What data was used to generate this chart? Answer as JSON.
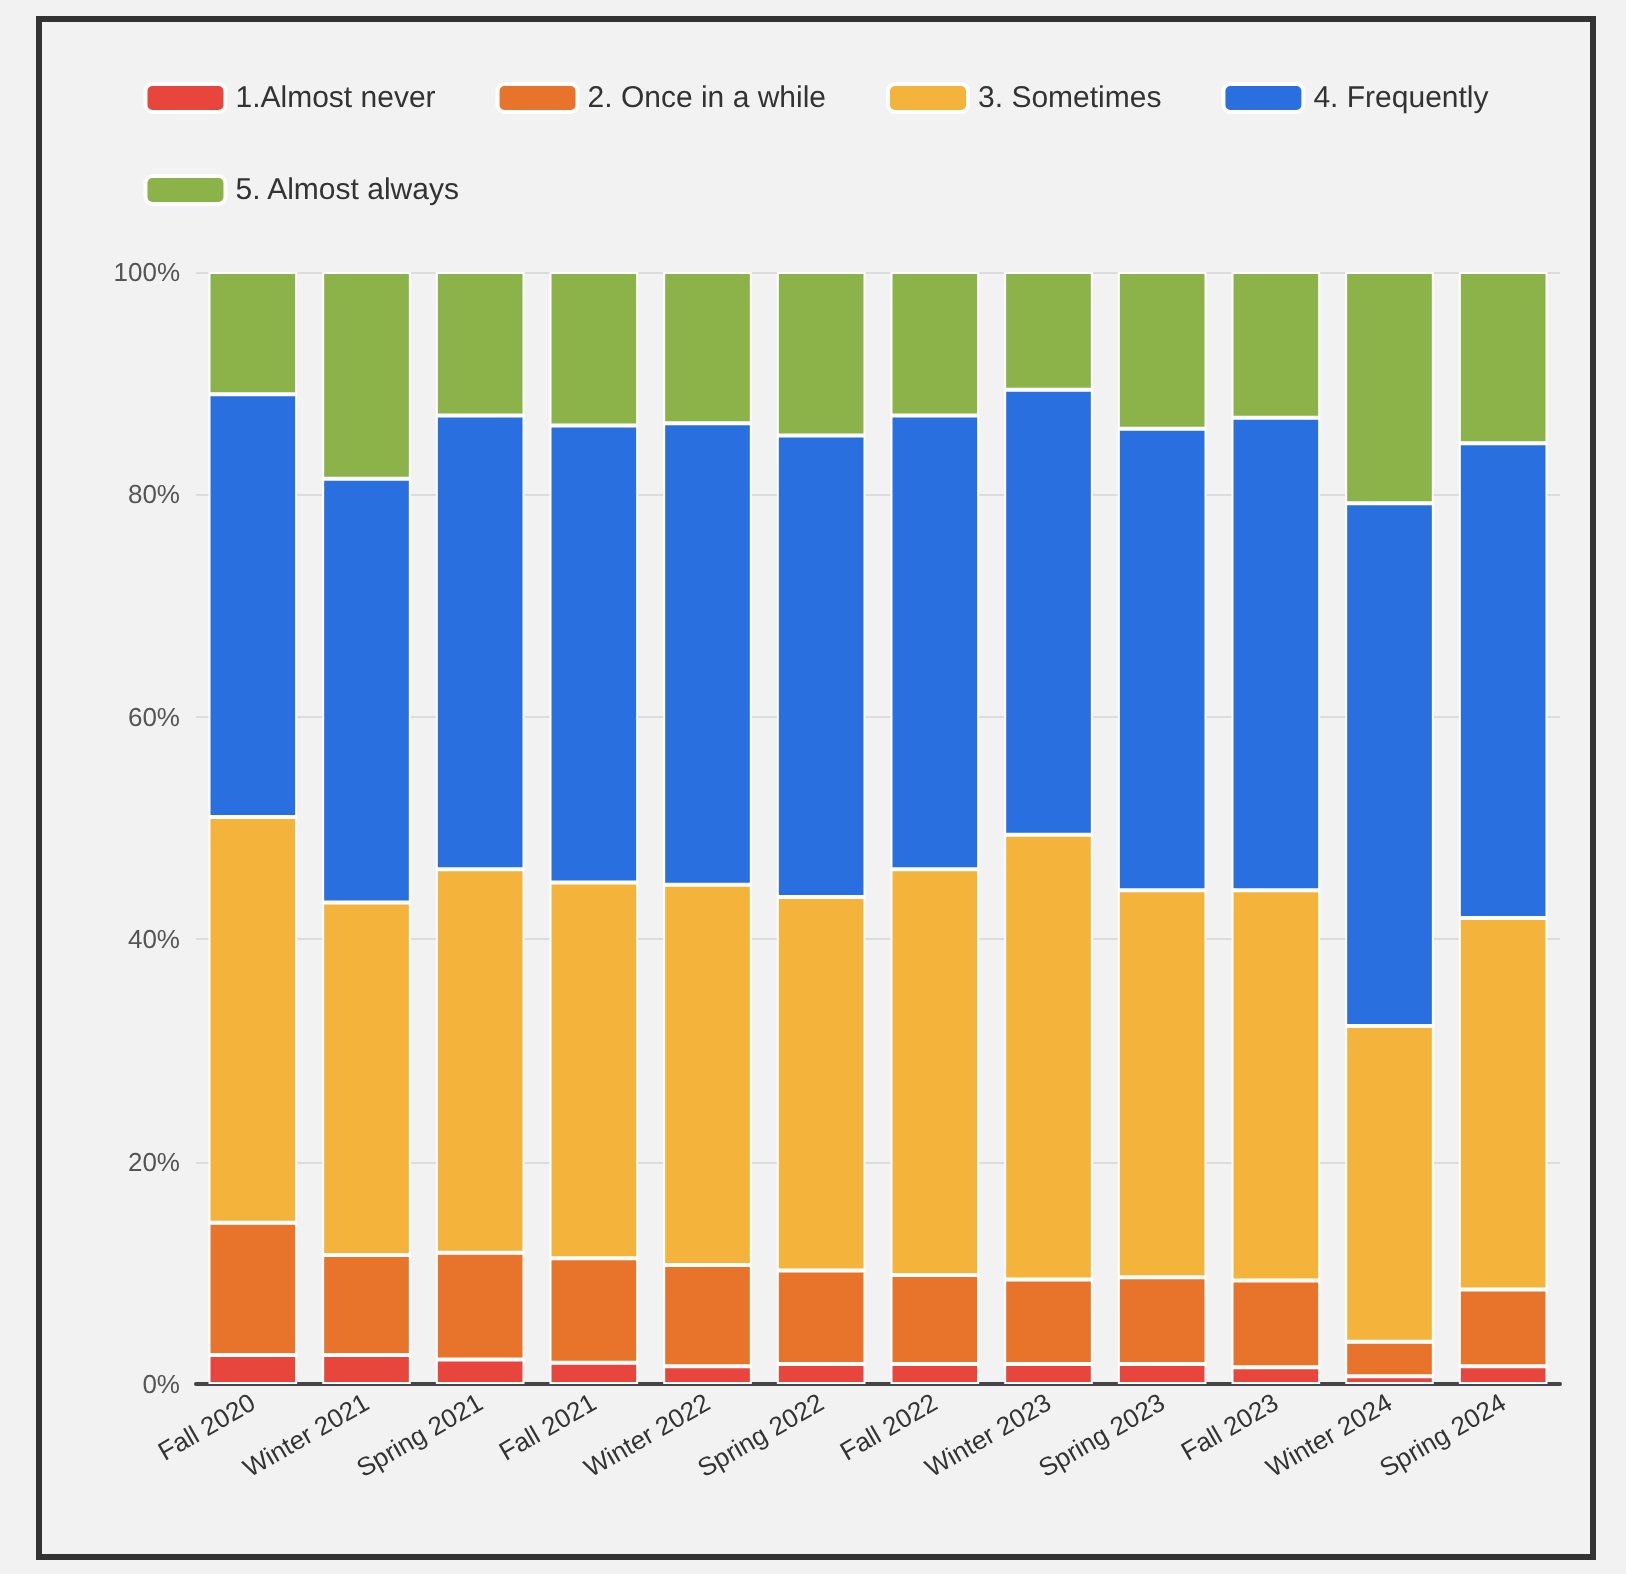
{
  "chart_data": {
    "type": "bar",
    "stacked": true,
    "categories": [
      "Fall 2020",
      "Winter 2021",
      "Spring 2021",
      "Fall 2021",
      "Winter 2022",
      "Spring 2022",
      "Fall 2022",
      "Winter 2023",
      "Spring 2023",
      "Fall 2023",
      "Winter 2024",
      "Spring 2024"
    ],
    "series": [
      {
        "name": "1.Almost never",
        "color": "#e8453c",
        "values": [
          2.6,
          2.6,
          2.2,
          1.9,
          1.6,
          1.8,
          1.8,
          1.8,
          1.8,
          1.5,
          0.7,
          1.6
        ]
      },
      {
        "name": "2. Once in a while",
        "color": "#e8742b",
        "values": [
          11.9,
          9.0,
          9.6,
          9.4,
          9.1,
          8.4,
          8.0,
          7.6,
          7.8,
          7.8,
          3.1,
          6.9
        ]
      },
      {
        "name": "3. Sometimes",
        "color": "#f4b43c",
        "values": [
          36.5,
          31.7,
          34.5,
          33.8,
          34.2,
          33.6,
          36.5,
          40.0,
          34.8,
          35.1,
          28.4,
          33.4
        ]
      },
      {
        "name": "4. Frequently",
        "color": "#2a6fe0",
        "values": [
          38.0,
          38.1,
          40.8,
          41.1,
          41.5,
          41.5,
          40.8,
          40.0,
          41.5,
          42.5,
          47.0,
          42.7
        ]
      },
      {
        "name": "5. Almost always",
        "color": "#8bb34a",
        "values": [
          11.0,
          18.6,
          12.9,
          13.8,
          13.6,
          14.7,
          12.9,
          10.6,
          14.1,
          13.1,
          20.8,
          15.4
        ]
      }
    ],
    "ylim": [
      0,
      100
    ],
    "yticks": [
      {
        "value": 0,
        "label": "0%"
      },
      {
        "value": 20,
        "label": "20%"
      },
      {
        "value": 40,
        "label": "40%"
      },
      {
        "value": 60,
        "label": "60%"
      },
      {
        "value": 80,
        "label": "80%"
      },
      {
        "value": 100,
        "label": "100%"
      }
    ],
    "grid": "y",
    "legend": "top"
  }
}
